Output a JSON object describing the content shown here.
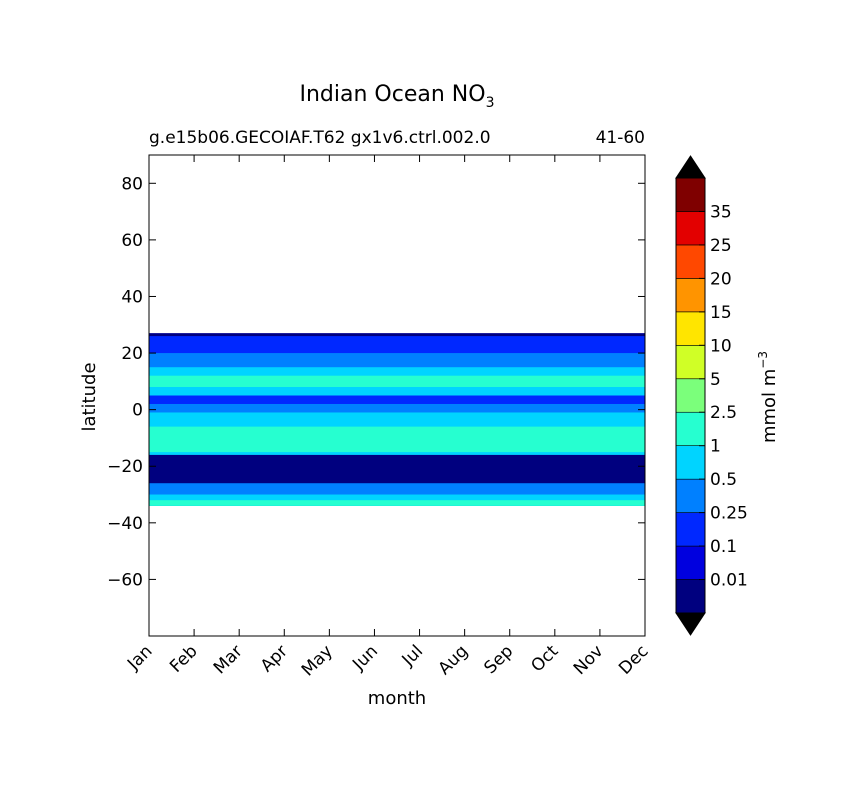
{
  "chart_data": {
    "type": "heatmap",
    "title_main": "Indian Ocean NO",
    "title_sub": "3",
    "subtitle_left": "g.e15b06.GECOIAF.T62 gx1v6.ctrl.002.0",
    "subtitle_right": "41-60",
    "xlabel": "month",
    "ylabel": "latitude",
    "x_categories": [
      "Jan",
      "Feb",
      "Mar",
      "Apr",
      "May",
      "Jun",
      "Jul",
      "Aug",
      "Sep",
      "Oct",
      "Nov",
      "Dec"
    ],
    "xlim": [
      0,
      11
    ],
    "ylim": [
      -80,
      90
    ],
    "y_ticks": [
      80,
      60,
      40,
      20,
      0,
      -20,
      -40,
      -60
    ],
    "y_tick_labels": [
      "80",
      "60",
      "40",
      "20",
      "0",
      "−20",
      "−40",
      "−60"
    ],
    "data_lat_range": [
      -34,
      27
    ],
    "colorbar": {
      "label_main": "mmol m",
      "label_sup": "−3",
      "levels": [
        0,
        0.01,
        0.1,
        0.25,
        0.5,
        1,
        2.5,
        5,
        10,
        15,
        20,
        25,
        35,
        40
      ],
      "tick_labels": [
        "0.01",
        "0.1",
        "0.25",
        "0.5",
        "1",
        "2.5",
        "5",
        "10",
        "15",
        "20",
        "25",
        "35"
      ],
      "colors": [
        "#00007f",
        "#0000df",
        "#0028ff",
        "#0080ff",
        "#00d4ff",
        "#26ffd0",
        "#7bff7b",
        "#d0ff26",
        "#ffe500",
        "#ff9400",
        "#ff4800",
        "#e30000",
        "#7f0000"
      ],
      "extend_colors": [
        "#000000",
        "#000000"
      ]
    },
    "bands": [
      {
        "lat_top": 27,
        "lat_bottom": -34,
        "level_index": 1
      },
      {
        "lat_top": 27,
        "lat_bottom": 24,
        "level_index": 0
      },
      {
        "lat_top": 26,
        "lat_bottom": 10,
        "level_index": 2
      },
      {
        "lat_top": 20,
        "lat_bottom": 0,
        "level_index": 3
      },
      {
        "lat_top": 15,
        "lat_bottom": 2,
        "level_index": 4
      },
      {
        "lat_top": 12,
        "lat_bottom": 8,
        "level_index": 5
      },
      {
        "lat_top": 5,
        "lat_bottom": -27,
        "level_index": 2
      },
      {
        "lat_top": 2,
        "lat_bottom": -22,
        "level_index": 3
      },
      {
        "lat_top": -1,
        "lat_bottom": -18,
        "level_index": 4
      },
      {
        "lat_top": -6,
        "lat_bottom": -15,
        "level_index": 5
      },
      {
        "lat_top": -16,
        "lat_bottom": -32,
        "level_index": 0
      },
      {
        "lat_top": -26,
        "lat_bottom": -34,
        "level_index": 3
      },
      {
        "lat_top": -30,
        "lat_bottom": -34,
        "level_index": 4
      },
      {
        "lat_top": -32,
        "lat_bottom": -34,
        "level_index": 5
      }
    ]
  }
}
